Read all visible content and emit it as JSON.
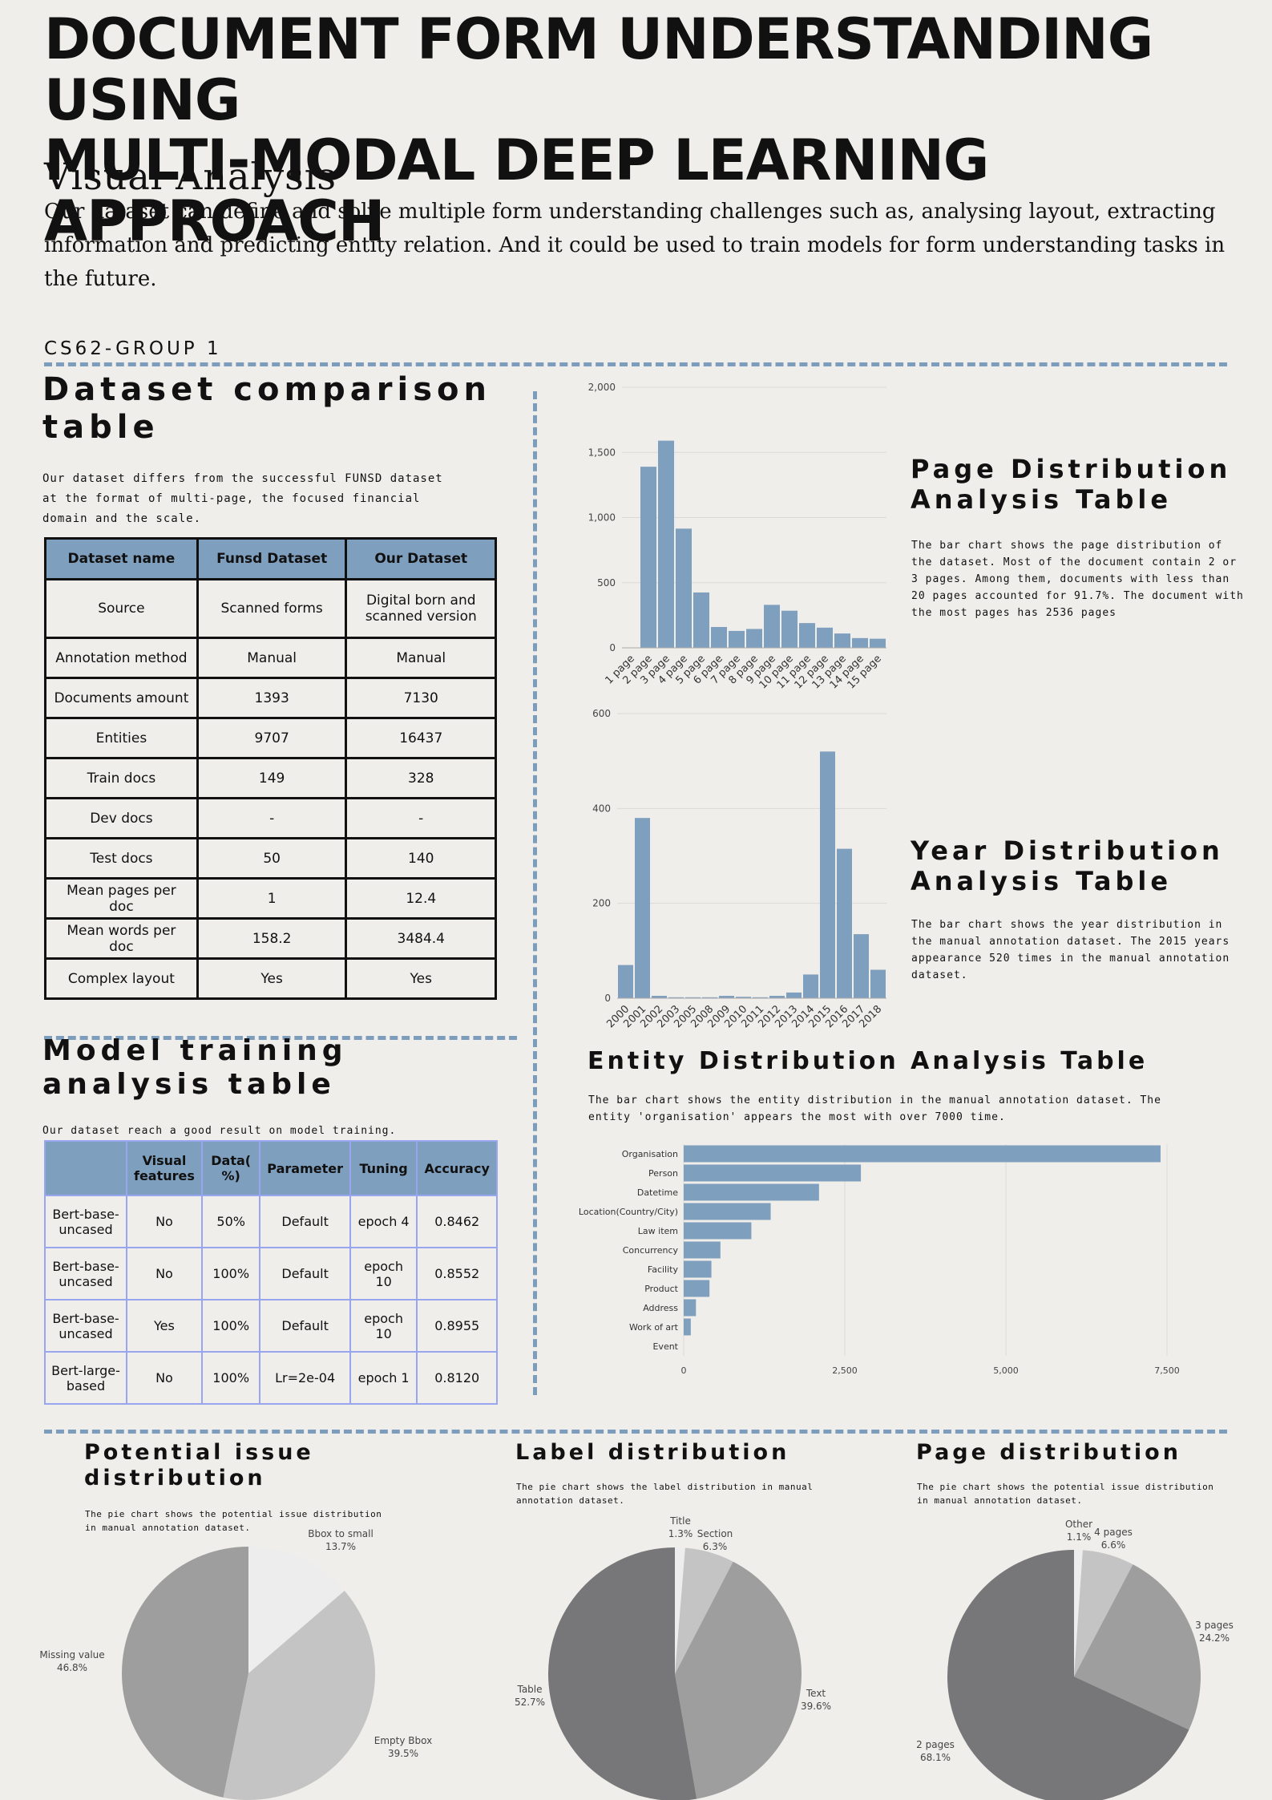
{
  "header": {
    "title_line1": "DOCUMENT FORM UNDERSTANDING USING",
    "title_line2": "MULTI-MODAL DEEP LEARNING APPROACH",
    "section_heading": "Visual Analysis",
    "intro": "Our dataset can define and solve multiple form understanding challenges such as, analysing layout, extracting information and predicting entity relation. And it could be used to train models for form understanding tasks in the future.",
    "group": "CS62-GROUP 1"
  },
  "comparison": {
    "title": "Dataset comparison table",
    "desc": "Our dataset differs from the successful FUNSD dataset at the format of multi-page, the focused financial domain and the scale.",
    "headers": [
      "Dataset name",
      "Funsd Dataset",
      "Our Dataset"
    ],
    "rows": [
      [
        "Source",
        "Scanned forms",
        "Digital born and scanned version"
      ],
      [
        "Annotation method",
        "Manual",
        "Manual"
      ],
      [
        "Documents amount",
        "1393",
        "7130"
      ],
      [
        "Entities",
        "9707",
        "16437"
      ],
      [
        "Train docs",
        "149",
        "328"
      ],
      [
        "Dev docs",
        "-",
        "-"
      ],
      [
        "Test docs",
        "50",
        "140"
      ],
      [
        "Mean pages per doc",
        "1",
        "12.4"
      ],
      [
        "Mean words per doc",
        "158.2",
        "3484.4"
      ],
      [
        "Complex layout",
        "Yes",
        "Yes"
      ]
    ]
  },
  "training": {
    "title": "Model training analysis table",
    "desc": "Our dataset reach a good result on model training.",
    "headers": [
      "",
      "Visual features",
      "Data( %)",
      "Parameter",
      "Tuning",
      "Accuracy"
    ],
    "rows": [
      [
        "Bert-base-uncased",
        "No",
        "50%",
        "Default",
        "epoch 4",
        "0.8462"
      ],
      [
        "Bert-base-uncased",
        "No",
        "100%",
        "Default",
        "epoch 10",
        "0.8552"
      ],
      [
        "Bert-base-uncased",
        "Yes",
        "100%",
        "Default",
        "epoch 10",
        "0.8955"
      ],
      [
        "Bert-large-based",
        "No",
        "100%",
        "Lr=2e-04",
        "epoch 1",
        "0.8120"
      ]
    ]
  },
  "page_dist": {
    "title": "Page Distribution Analysis Table",
    "desc": "The bar chart shows the page distribution of the dataset. Most of the document contain 2 or 3 pages. Among them, documents with less than 20 pages accounted for 91.7%. The document with the most pages has 2536 pages"
  },
  "year_dist": {
    "title": "Year Distribution Analysis Table",
    "desc": "The bar chart shows the year distribution in the manual annotation dataset. The 2015 years appearance 520 times in the manual annotation dataset."
  },
  "entity_dist": {
    "title": "Entity Distribution Analysis Table",
    "desc": "The bar chart shows the entity distribution in the manual annotation dataset. The entity 'organisation' appears the most with over 7000 time."
  },
  "issue_pie": {
    "title": "Potential issue distribution",
    "desc": "The pie chart shows the potential issue distribution in manual annotation dataset."
  },
  "label_pie": {
    "title": "Label  distribution",
    "desc": "The pie chart shows the label distribution in manual annotation dataset."
  },
  "pagecount_pie": {
    "title": "Page distribution",
    "desc": "The pie chart shows the potential issue distribution in manual annotation dataset."
  },
  "colors": {
    "bar": "#7f9fbe",
    "dash": "#7d9dbd",
    "background": "#f0eeeb"
  },
  "chart_data": [
    {
      "id": "page_bar",
      "type": "bar",
      "categories": [
        "1 page",
        "2 page",
        "3 page",
        "4 page",
        "5 page",
        "6 page",
        "7 page",
        "8 page",
        "9 page",
        "10 page",
        "11 page",
        "12 page",
        "13 page",
        "14 page",
        "15 page"
      ],
      "values": [
        0,
        1390,
        1590,
        915,
        425,
        160,
        130,
        145,
        330,
        285,
        190,
        155,
        110,
        75,
        70
      ],
      "yticks": [
        "0",
        "500",
        "1,000",
        "1,500",
        "2,000"
      ],
      "ylim": [
        0,
        2000
      ]
    },
    {
      "id": "year_bar",
      "type": "bar",
      "categories": [
        "2000",
        "2001",
        "2002",
        "2003",
        "2005",
        "2008",
        "2009",
        "2010",
        "2011",
        "2012",
        "2013",
        "2014",
        "2015",
        "2016",
        "2017",
        "2018"
      ],
      "values": [
        70,
        380,
        5,
        2,
        2,
        2,
        5,
        3,
        2,
        5,
        12,
        50,
        520,
        315,
        135,
        60
      ],
      "yticks": [
        "0",
        "200",
        "400",
        "600"
      ],
      "ylim": [
        0,
        600
      ]
    },
    {
      "id": "entity_bar",
      "type": "bar",
      "orientation": "horizontal",
      "categories": [
        "Organisation",
        "Person",
        "Datetime",
        "Location(Country/City)",
        "Law item",
        "Concurrency",
        "Facility",
        "Product",
        "Address",
        "Work of art",
        "Event"
      ],
      "values": [
        7400,
        2750,
        2100,
        1350,
        1050,
        570,
        430,
        400,
        190,
        110,
        0
      ],
      "xticks": [
        "0",
        "2,500",
        "5,000",
        "7,500"
      ],
      "xlim": [
        0,
        7500
      ]
    },
    {
      "id": "issue_pie",
      "type": "pie",
      "labels": [
        "Bbox to small",
        "Empty Bbox",
        "Missing value"
      ],
      "values": [
        13.7,
        39.5,
        46.8
      ],
      "value_labels": [
        "13.7%",
        "39.5%",
        "46.8%"
      ],
      "colors": [
        "#eeedee",
        "#c4c4c4",
        "#9e9e9e"
      ]
    },
    {
      "id": "label_pie",
      "type": "pie",
      "labels": [
        "Title",
        "Section",
        "Text",
        "Table"
      ],
      "values": [
        1.3,
        6.3,
        39.6,
        52.7
      ],
      "value_labels": [
        "1.3%",
        "6.3%",
        "39.6%",
        "52.7%"
      ],
      "colors": [
        "#eeedee",
        "#c4c4c4",
        "#9e9e9e",
        "#777779"
      ]
    },
    {
      "id": "pagecount_pie",
      "type": "pie",
      "labels": [
        "Other",
        "4 pages",
        "3 pages",
        "2 pages"
      ],
      "values": [
        1.1,
        6.6,
        24.2,
        68.1
      ],
      "value_labels": [
        "1.1%",
        "6.6%",
        "24.2%",
        "68.1%"
      ],
      "colors": [
        "#eeedee",
        "#c4c4c4",
        "#9e9e9e",
        "#777779"
      ]
    }
  ]
}
